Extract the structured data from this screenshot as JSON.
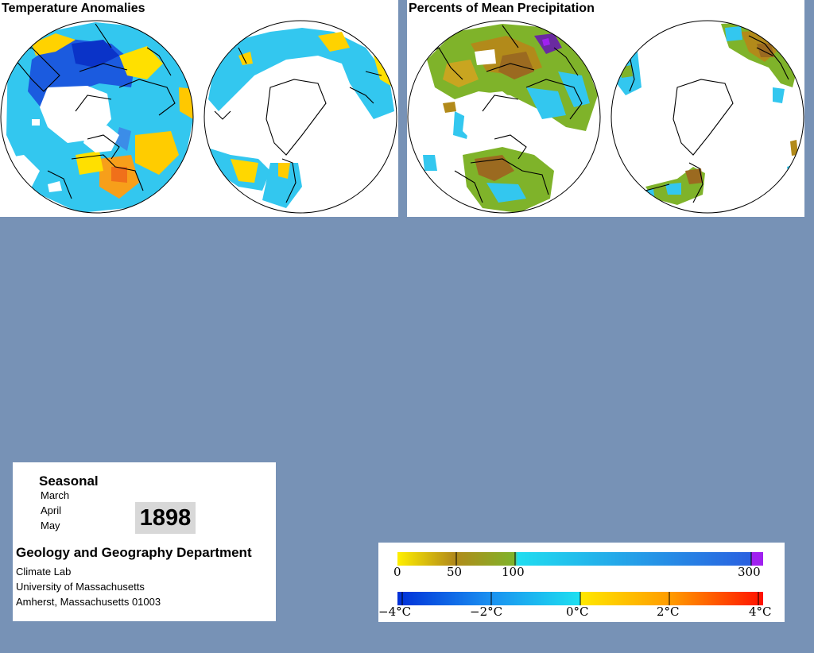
{
  "panels": {
    "temperature": {
      "title": "Temperature Anomalies"
    },
    "precipitation": {
      "title": "Percents of Mean Precipitation"
    }
  },
  "info": {
    "period_label": "Seasonal",
    "months": [
      "March",
      "April",
      "May"
    ],
    "year": "1898",
    "department": "Geology and Geography Department",
    "address_lines": [
      "Climate Lab",
      "University of Massachusetts",
      "Amherst, Massachusetts 01003"
    ]
  },
  "legend": {
    "precipitation": {
      "ticks": [
        "0",
        "50",
        "100",
        "300"
      ],
      "colors": [
        "#ffef00",
        "#b28a1a",
        "#7fb32a",
        "#20ddf0",
        "#2a60e0",
        "#a020f0"
      ]
    },
    "temperature": {
      "ticks": [
        "−4°C",
        "−2°C",
        "0°C",
        "2°C",
        "4°C"
      ],
      "colors": [
        "#0030d8",
        "#1a8ff0",
        "#1ee0f0",
        "#ffe800",
        "#ff9a00",
        "#ff1000"
      ]
    }
  }
}
